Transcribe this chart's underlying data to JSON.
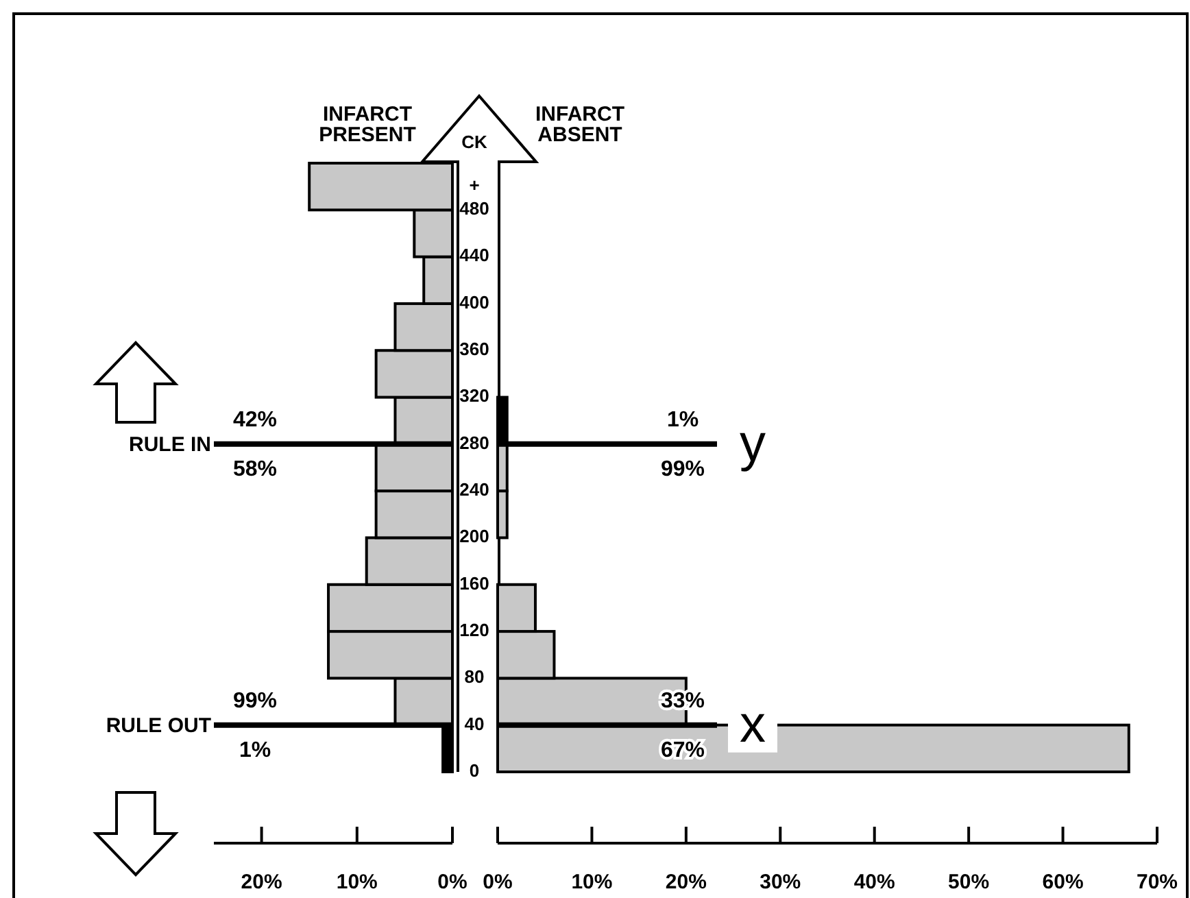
{
  "chart_data": [
    {
      "type": "histogram",
      "orientation": "horizontal",
      "title": "INFARCT PRESENT",
      "bins": [
        0,
        40,
        80,
        120,
        160,
        200,
        240,
        280,
        320,
        360,
        400,
        440,
        480,
        520
      ],
      "values": [
        1,
        6,
        13,
        13,
        9,
        8,
        8,
        6,
        8,
        6,
        3,
        4,
        15
      ],
      "colors": [
        "#000000",
        "#c8c8c8",
        "#c8c8c8",
        "#c8c8c8",
        "#c8c8c8",
        "#c8c8c8",
        "#c8c8c8",
        "#c8c8c8",
        "#c8c8c8",
        "#c8c8c8",
        "#c8c8c8",
        "#c8c8c8",
        "#c8c8c8"
      ],
      "xlim": [
        25,
        0
      ],
      "xticks": [
        {
          "value": 20,
          "label": "20%"
        },
        {
          "value": 10,
          "label": "10%"
        },
        {
          "value": 0,
          "label": "0%"
        }
      ],
      "ylim": [
        0,
        520
      ],
      "tick_labels": "x",
      "ref_lines": [
        {
          "axis": "y",
          "value": 280,
          "label": "RULE IN"
        },
        {
          "axis": "y",
          "value": 40,
          "label": "RULE OUT"
        }
      ],
      "annotations": [
        "42%",
        "58%",
        "99%",
        "1%"
      ]
    },
    {
      "type": "histogram",
      "orientation": "horizontal",
      "title": "INFARCT ABSENT",
      "ylabel": "CK",
      "bins": [
        0,
        40,
        80,
        120,
        160,
        200,
        240,
        280,
        320,
        360,
        400,
        440,
        480,
        520
      ],
      "values": [
        67,
        20,
        6,
        4,
        0,
        1,
        1,
        1,
        0,
        0,
        0,
        0,
        0
      ],
      "colors": [
        "#c8c8c8",
        "#c8c8c8",
        "#c8c8c8",
        "#c8c8c8",
        "#c8c8c8",
        "#c8c8c8",
        "#c8c8c8",
        "#000000",
        "#c8c8c8",
        "#c8c8c8",
        "#c8c8c8",
        "#c8c8c8",
        "#c8c8c8"
      ],
      "xlim": [
        0,
        70
      ],
      "xticks": [
        {
          "value": 0,
          "label": "0%"
        },
        {
          "value": 10,
          "label": "10%"
        },
        {
          "value": 20,
          "label": "20%"
        },
        {
          "value": 30,
          "label": "30%"
        },
        {
          "value": 40,
          "label": "40%"
        },
        {
          "value": 50,
          "label": "50%"
        },
        {
          "value": 60,
          "label": "60%"
        },
        {
          "value": 70,
          "label": "70%"
        }
      ],
      "ylim": [
        0,
        520
      ],
      "yticks": [
        0,
        40,
        80,
        120,
        160,
        200,
        240,
        280,
        320,
        360,
        400,
        440,
        480,
        {
          "value": 500,
          "label": "+"
        }
      ],
      "ref_lines": [
        {
          "axis": "y",
          "value": 280,
          "label": "y"
        },
        {
          "axis": "y",
          "value": 40,
          "label": "x"
        }
      ],
      "annotations": [
        "1%",
        "99%",
        "33%",
        "67%"
      ]
    }
  ]
}
